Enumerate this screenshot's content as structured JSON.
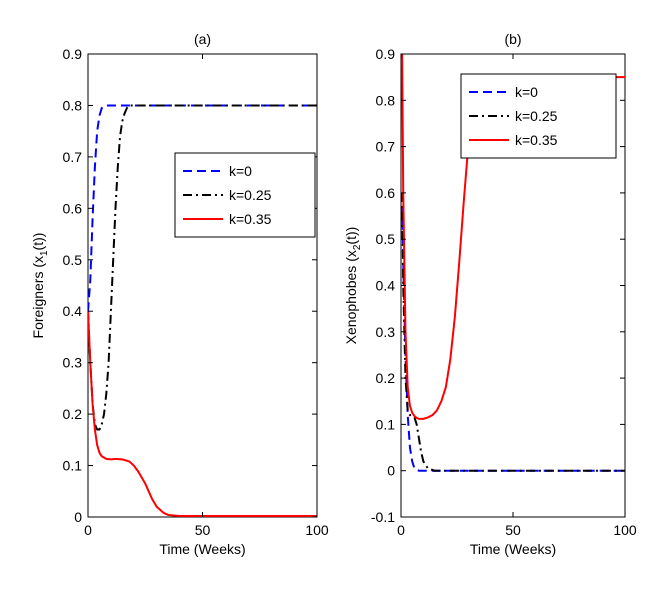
{
  "chart_data": [
    {
      "type": "line",
      "title": "(a)",
      "xlabel": "Time (Weeks)",
      "ylabel": "Foreigners (x",
      "ylabel_sub": "1",
      "ylabel_tail": "(t))",
      "xlim": [
        0,
        100
      ],
      "ylim": [
        0,
        0.9
      ],
      "xticks": [
        0,
        50,
        100
      ],
      "yticks": [
        0,
        0.1,
        0.2,
        0.3,
        0.4,
        0.5,
        0.6,
        0.7,
        0.8,
        0.9
      ],
      "grid": false,
      "legend_position": "right-middle",
      "series": [
        {
          "name": "k=0",
          "color": "#0000ff",
          "dash": "dashed",
          "x": [
            0,
            1,
            2,
            3,
            4,
            5,
            6,
            7,
            8,
            10,
            15,
            100
          ],
          "y": [
            0.4,
            0.46,
            0.58,
            0.68,
            0.75,
            0.78,
            0.795,
            0.799,
            0.8,
            0.8,
            0.8,
            0.8
          ]
        },
        {
          "name": "k=0.25",
          "color": "#000000",
          "dash": "dashdot",
          "x": [
            0,
            1,
            2,
            3,
            4,
            5,
            6,
            7,
            8,
            9,
            10,
            11,
            12,
            13,
            14,
            15,
            16,
            17,
            18,
            20,
            100
          ],
          "y": [
            0.4,
            0.3,
            0.22,
            0.18,
            0.17,
            0.17,
            0.18,
            0.2,
            0.24,
            0.3,
            0.4,
            0.5,
            0.6,
            0.68,
            0.74,
            0.77,
            0.785,
            0.795,
            0.8,
            0.8,
            0.8
          ]
        },
        {
          "name": "k=0.35",
          "color": "#ff0000",
          "dash": "solid",
          "x": [
            0,
            1,
            2,
            3,
            4,
            5,
            6,
            8,
            10,
            12,
            15,
            18,
            20,
            22,
            25,
            28,
            30,
            33,
            35,
            40,
            100
          ],
          "y": [
            0.4,
            0.3,
            0.22,
            0.17,
            0.14,
            0.125,
            0.118,
            0.113,
            0.112,
            0.113,
            0.112,
            0.108,
            0.1,
            0.088,
            0.065,
            0.035,
            0.02,
            0.008,
            0.004,
            0.002,
            0.002
          ]
        }
      ]
    },
    {
      "type": "line",
      "title": "(b)",
      "xlabel": "Time (Weeks)",
      "ylabel": "Xenophobes (x",
      "ylabel_sub": "2",
      "ylabel_tail": "(t))",
      "xlim": [
        0,
        100
      ],
      "ylim": [
        -0.1,
        0.9
      ],
      "xticks": [
        0,
        50,
        100
      ],
      "yticks": [
        -0.1,
        0,
        0.1,
        0.2,
        0.3,
        0.4,
        0.5,
        0.6,
        0.7,
        0.8,
        0.9
      ],
      "grid": false,
      "legend_position": "top-right",
      "series": [
        {
          "name": "k=0",
          "color": "#0000ff",
          "dash": "dashed",
          "x": [
            0.5,
            1,
            2,
            3,
            4,
            5,
            6,
            8,
            10,
            100
          ],
          "y": [
            0.6,
            0.45,
            0.25,
            0.12,
            0.05,
            0.02,
            0.005,
            0.0,
            0.0,
            0.0
          ]
        },
        {
          "name": "k=0.25",
          "color": "#000000",
          "dash": "dashdot",
          "x": [
            0.5,
            1,
            2,
            3,
            4,
            5,
            6,
            7,
            8,
            9,
            10,
            12,
            15,
            100
          ],
          "y": [
            0.6,
            0.4,
            0.2,
            0.13,
            0.12,
            0.12,
            0.115,
            0.1,
            0.07,
            0.04,
            0.02,
            0.005,
            0.0,
            0.0
          ]
        },
        {
          "name": "k=0.35",
          "color": "#ff0000",
          "dash": "solid",
          "x": [
            0.5,
            1,
            2,
            3,
            4,
            5,
            6,
            7,
            8,
            10,
            12,
            14,
            16,
            18,
            20,
            22,
            24,
            26,
            28,
            30,
            32,
            34,
            36,
            38,
            40,
            45,
            50,
            100
          ],
          "y": [
            0.9,
            0.6,
            0.3,
            0.18,
            0.14,
            0.125,
            0.118,
            0.114,
            0.112,
            0.112,
            0.115,
            0.12,
            0.13,
            0.15,
            0.18,
            0.24,
            0.33,
            0.45,
            0.58,
            0.7,
            0.78,
            0.82,
            0.84,
            0.848,
            0.85,
            0.85,
            0.85,
            0.85
          ]
        }
      ]
    }
  ]
}
